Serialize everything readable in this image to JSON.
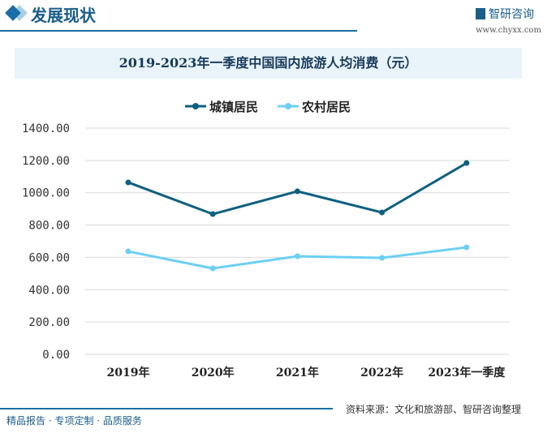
{
  "header": {
    "title": "发展现状",
    "logo_text": "智研咨询",
    "url": "www.chyxx.com"
  },
  "footer": {
    "left": "精品报告 · 专项定制 · 品质服务",
    "source": "资料来源：文化和旅游部、智研咨询整理"
  },
  "chart_data": {
    "type": "line",
    "title": "2019-2023年一季度中国国内旅游人均消费（元）",
    "categories": [
      "2019年",
      "2020年",
      "2021年",
      "2022年",
      "2023年一季度"
    ],
    "series": [
      {
        "name": "城镇居民",
        "color": "#0e5f80",
        "values": [
          1064,
          868,
          1009,
          878,
          1184
        ]
      },
      {
        "name": "农村居民",
        "color": "#6ccff6",
        "values": [
          637,
          532,
          607,
          597,
          662
        ]
      }
    ],
    "yticks": [
      "0.00",
      "200.00",
      "400.00",
      "600.00",
      "800.00",
      "1000.00",
      "1200.00",
      "1400.00"
    ],
    "ylim": [
      0,
      1400
    ],
    "grid": true,
    "legend": "top"
  }
}
